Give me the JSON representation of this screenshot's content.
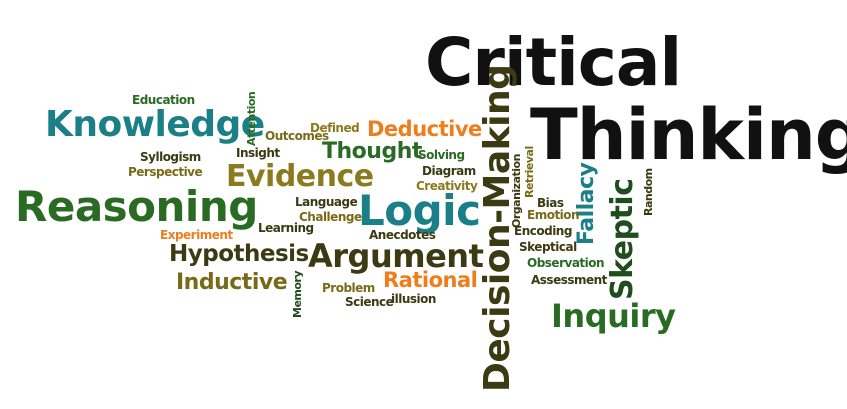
{
  "colors": {
    "black": "#111111",
    "dark_olive": "#3b3a12",
    "olive": "#7a6a18",
    "orange": "#f07d1c",
    "teal": "#1a7f86",
    "green": "#2a6b24",
    "dark_green": "#1f4d1c",
    "gold": "#8c7a1e"
  },
  "words": [
    {
      "text": "Critical"
    },
    {
      "text": "Thinking"
    },
    {
      "text": "Knowledge"
    },
    {
      "text": "Reasoning"
    },
    {
      "text": "Evidence"
    },
    {
      "text": "Logic"
    },
    {
      "text": "Argument"
    },
    {
      "text": "Thought"
    },
    {
      "text": "Deductive"
    },
    {
      "text": "Inductive"
    },
    {
      "text": "Hypothesis"
    },
    {
      "text": "Rational"
    },
    {
      "text": "Decision-Making"
    },
    {
      "text": "Skeptic"
    },
    {
      "text": "Fallacy"
    },
    {
      "text": "Inquiry"
    },
    {
      "text": "Education"
    },
    {
      "text": "Attention"
    },
    {
      "text": "Outcomes"
    },
    {
      "text": "Defined"
    },
    {
      "text": "Insight"
    },
    {
      "text": "Syllogism"
    },
    {
      "text": "Perspective"
    },
    {
      "text": "Solving"
    },
    {
      "text": "Diagram"
    },
    {
      "text": "Creativity"
    },
    {
      "text": "Language"
    },
    {
      "text": "Challenge"
    },
    {
      "text": "Learning"
    },
    {
      "text": "Experiment"
    },
    {
      "text": "Anecdotes"
    },
    {
      "text": "Memory"
    },
    {
      "text": "Problem"
    },
    {
      "text": "Science"
    },
    {
      "text": "illusion"
    },
    {
      "text": "Organization"
    },
    {
      "text": "Retrieval"
    },
    {
      "text": "Bias"
    },
    {
      "text": "Emotion"
    },
    {
      "text": "Encoding"
    },
    {
      "text": "Skeptical"
    },
    {
      "text": "Observation"
    },
    {
      "text": "Assessment"
    },
    {
      "text": "Random"
    }
  ]
}
